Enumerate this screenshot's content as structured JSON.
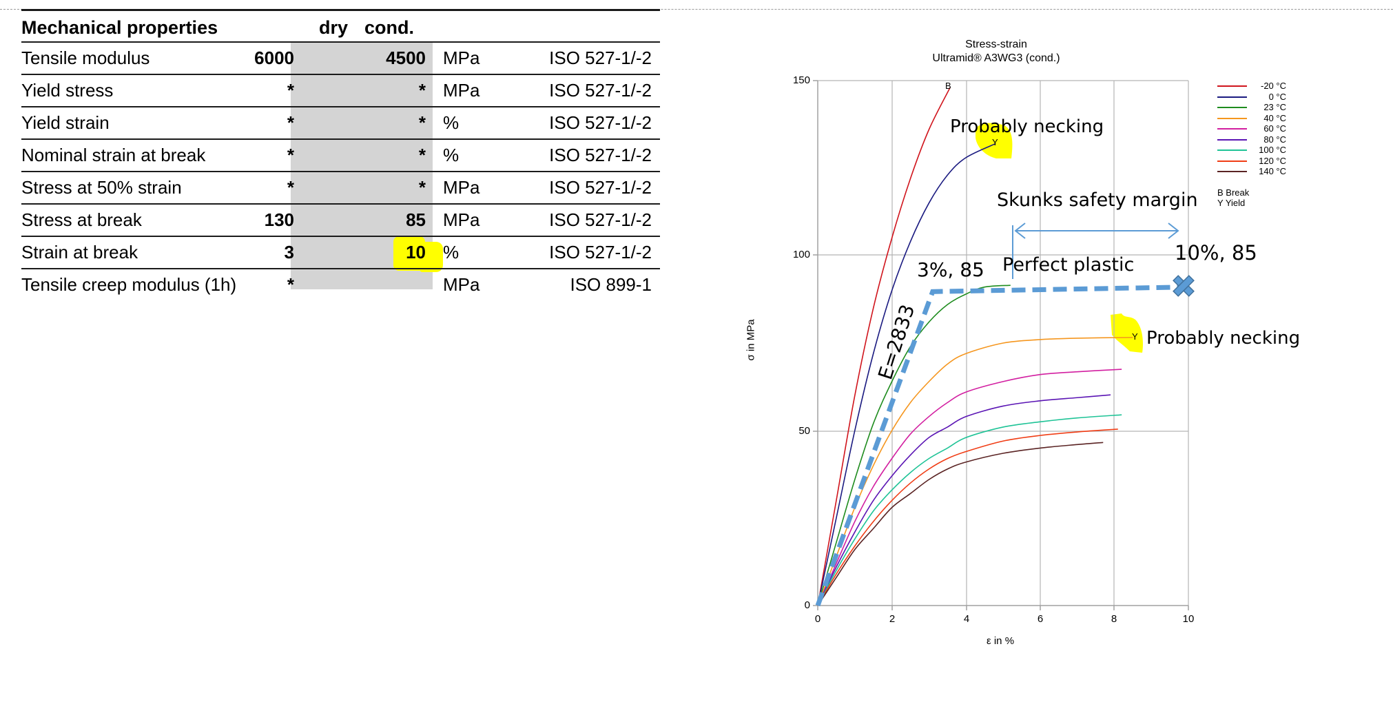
{
  "table": {
    "header": {
      "title": "Mechanical properties",
      "col_dry": "dry",
      "col_cond": "cond."
    },
    "rows": [
      {
        "name": "Tensile modulus",
        "dry": "6000",
        "cond": "4500",
        "unit": "MPa",
        "standard": "ISO 527-1/-2"
      },
      {
        "name": "Yield stress",
        "dry": "*",
        "cond": "*",
        "unit": "MPa",
        "standard": "ISO 527-1/-2"
      },
      {
        "name": "Yield strain",
        "dry": "*",
        "cond": "*",
        "unit": "%",
        "standard": "ISO 527-1/-2"
      },
      {
        "name": "Nominal strain at break",
        "dry": "*",
        "cond": "*",
        "unit": "%",
        "standard": "ISO 527-1/-2"
      },
      {
        "name": "Stress at 50% strain",
        "dry": "*",
        "cond": "*",
        "unit": "MPa",
        "standard": "ISO 527-1/-2"
      },
      {
        "name": "Stress at break",
        "dry": "130",
        "cond": "85",
        "unit": "MPa",
        "standard": "ISO 527-1/-2"
      },
      {
        "name": "Strain at break",
        "dry": "3",
        "cond": "10",
        "unit": "%",
        "standard": "ISO 527-1/-2"
      },
      {
        "name": "Tensile creep modulus (1h)",
        "dry": "*",
        "cond": "",
        "unit": "MPa",
        "standard": "ISO 899-1"
      }
    ],
    "highlight_color": "#ffff00",
    "value_column_bg": "#d4d4d4"
  },
  "chart_data": {
    "type": "line",
    "title": "Stress-strain",
    "subtitle": "Ultramid® A3WG3 (cond.)",
    "xlabel": "ε in %",
    "ylabel": "σ in MPa",
    "xlim": [
      0,
      10
    ],
    "ylim": [
      0,
      150
    ],
    "xticks": [
      "0",
      "2",
      "4",
      "6",
      "8",
      "10"
    ],
    "yticks": [
      "0",
      "50",
      "100",
      "150"
    ],
    "grid": true,
    "legend_position": "right",
    "legend_notes": [
      "B Break",
      "Y Yield"
    ],
    "series": [
      {
        "name": "-20 °C",
        "color": "#d0141c",
        "end_marker": "B",
        "points": [
          [
            0,
            0
          ],
          [
            0.5,
            30
          ],
          [
            1,
            60
          ],
          [
            1.5,
            85
          ],
          [
            2,
            105
          ],
          [
            2.5,
            122
          ],
          [
            3,
            136
          ],
          [
            3.57,
            148
          ]
        ]
      },
      {
        "name": "0 °C",
        "color": "#1a1a80",
        "end_marker": "Y",
        "points": [
          [
            0,
            0
          ],
          [
            0.5,
            25
          ],
          [
            1,
            50
          ],
          [
            1.5,
            72
          ],
          [
            2,
            90
          ],
          [
            2.5,
            104
          ],
          [
            3,
            115
          ],
          [
            3.5,
            123
          ],
          [
            4,
            128
          ],
          [
            4.8,
            132
          ]
        ]
      },
      {
        "name": "23 °C",
        "color": "#1e8c1e",
        "points": [
          [
            0,
            0
          ],
          [
            0.5,
            18
          ],
          [
            1,
            36
          ],
          [
            1.5,
            52
          ],
          [
            2,
            64
          ],
          [
            2.5,
            74
          ],
          [
            3,
            81
          ],
          [
            3.5,
            86
          ],
          [
            4,
            89
          ],
          [
            4.5,
            91
          ],
          [
            5.2,
            91.5
          ]
        ]
      },
      {
        "name": "40 °C",
        "color": "#f5961e",
        "end_marker": "Y",
        "points": [
          [
            0,
            0
          ],
          [
            0.5,
            14
          ],
          [
            1,
            28
          ],
          [
            1.5,
            40
          ],
          [
            2,
            50
          ],
          [
            2.5,
            58
          ],
          [
            3,
            64
          ],
          [
            3.5,
            69
          ],
          [
            4,
            72
          ],
          [
            5,
            75
          ],
          [
            6,
            76
          ],
          [
            7,
            76.4
          ],
          [
            8.5,
            76.6
          ]
        ]
      },
      {
        "name": "60 °C",
        "color": "#d21ea0",
        "points": [
          [
            0,
            0
          ],
          [
            0.5,
            12
          ],
          [
            1,
            24
          ],
          [
            1.5,
            34
          ],
          [
            2,
            42
          ],
          [
            2.5,
            49
          ],
          [
            3,
            54
          ],
          [
            3.5,
            58
          ],
          [
            4,
            61
          ],
          [
            5,
            64
          ],
          [
            6,
            66
          ],
          [
            7,
            66.8
          ],
          [
            8.2,
            67.5
          ]
        ]
      },
      {
        "name": "80 °C",
        "color": "#5a14b4",
        "points": [
          [
            0,
            0
          ],
          [
            0.5,
            11
          ],
          [
            1,
            21
          ],
          [
            1.5,
            30
          ],
          [
            2,
            37
          ],
          [
            2.5,
            43
          ],
          [
            3,
            48
          ],
          [
            3.5,
            51
          ],
          [
            4,
            54
          ],
          [
            5,
            57
          ],
          [
            6,
            58.5
          ],
          [
            7,
            59.4
          ],
          [
            7.9,
            60.2
          ]
        ]
      },
      {
        "name": "100 °C",
        "color": "#1ec396",
        "points": [
          [
            0,
            0
          ],
          [
            0.5,
            10
          ],
          [
            1,
            19
          ],
          [
            1.5,
            27
          ],
          [
            2,
            33
          ],
          [
            2.5,
            38
          ],
          [
            3,
            42
          ],
          [
            3.5,
            45
          ],
          [
            4,
            48
          ],
          [
            5,
            51
          ],
          [
            6,
            52.5
          ],
          [
            7,
            53.6
          ],
          [
            8.2,
            54.5
          ]
        ]
      },
      {
        "name": "120 °C",
        "color": "#f03c14",
        "points": [
          [
            0,
            0
          ],
          [
            0.5,
            9
          ],
          [
            1,
            17
          ],
          [
            1.5,
            24
          ],
          [
            2,
            30
          ],
          [
            2.5,
            35
          ],
          [
            3,
            39
          ],
          [
            3.5,
            42
          ],
          [
            4,
            44
          ],
          [
            5,
            47
          ],
          [
            6,
            48.6
          ],
          [
            7,
            49.6
          ],
          [
            8.1,
            50.4
          ]
        ]
      },
      {
        "name": "140 °C",
        "color": "#5a2323",
        "points": [
          [
            0,
            0
          ],
          [
            0.5,
            8
          ],
          [
            1,
            16
          ],
          [
            1.5,
            22
          ],
          [
            2,
            28
          ],
          [
            2.5,
            32
          ],
          [
            3,
            36
          ],
          [
            3.5,
            39
          ],
          [
            4,
            41
          ],
          [
            5,
            43.5
          ],
          [
            6,
            45
          ],
          [
            7,
            46
          ],
          [
            7.7,
            46.6
          ]
        ]
      }
    ],
    "overlay": {
      "dashed_line": {
        "color": "#5b9bd5",
        "points": [
          [
            0,
            0
          ],
          [
            3.1,
            89.7
          ],
          [
            9.9,
            91
          ]
        ]
      },
      "x_marker": {
        "x": 9.9,
        "y": 91,
        "color": "#5b9bd5"
      },
      "annotations": [
        {
          "text": "Probably necking",
          "near_series": "0 °C"
        },
        {
          "text": "Skunks safety margin"
        },
        {
          "text": "Perfect plastic"
        },
        {
          "text": "3%, 85"
        },
        {
          "text": "10%, 85"
        },
        {
          "text": "E=2833",
          "rotation_deg": -72
        },
        {
          "text": "Probably necking",
          "near_series": "40 °C"
        }
      ]
    }
  },
  "annotations": {
    "necking_top": "Probably necking",
    "safety_margin": "Skunks safety margin",
    "perfect_plastic": "Perfect plastic",
    "point_3": "3%, 85",
    "point_10": "10%, 85",
    "modulus": "E=2833",
    "necking_bottom": "Probably necking",
    "marker_B": "B",
    "marker_Y1": "Y",
    "marker_Y2": "Y"
  }
}
